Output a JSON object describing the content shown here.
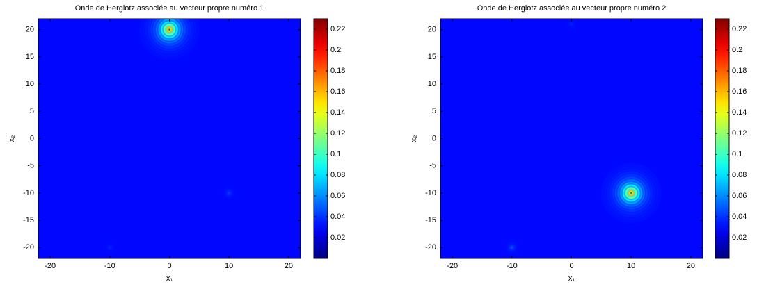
{
  "chart_data": [
    {
      "type": "heatmap",
      "title": "Onde de Herglotz associée au vecteur propre numéro 1",
      "xlabel": "x₁",
      "ylabel": "x₂",
      "xlim": [
        -22,
        22
      ],
      "ylim": [
        -22,
        22
      ],
      "xticks": [
        -20,
        -10,
        0,
        10,
        20
      ],
      "yticks": [
        -20,
        -15,
        -10,
        -5,
        0,
        5,
        10,
        15,
        20
      ],
      "clim": [
        0,
        0.23
      ],
      "cticks": [
        0.02,
        0.04,
        0.06,
        0.08,
        0.1,
        0.12,
        0.14,
        0.16,
        0.18,
        0.2,
        0.22
      ],
      "colormap": "jet",
      "background": 0.03,
      "x": [
        0,
        10,
        -10
      ],
      "y": [
        20,
        -10,
        -20
      ],
      "values": [
        0.23,
        0.05,
        0.04
      ]
    },
    {
      "type": "heatmap",
      "title": "Onde de Herglotz associée au vecteur propre numéro 2",
      "xlabel": "x₁",
      "ylabel": "x₂",
      "xlim": [
        -22,
        22
      ],
      "ylim": [
        -22,
        22
      ],
      "xticks": [
        -20,
        -10,
        0,
        10,
        20
      ],
      "yticks": [
        -20,
        -15,
        -10,
        -5,
        0,
        5,
        10,
        15,
        20
      ],
      "clim": [
        0,
        0.23
      ],
      "cticks": [
        0.02,
        0.04,
        0.06,
        0.08,
        0.1,
        0.12,
        0.14,
        0.16,
        0.18,
        0.2,
        0.22
      ],
      "colormap": "jet",
      "background": 0.03,
      "x": [
        10,
        -10,
        0
      ],
      "y": [
        -10,
        -20,
        21
      ],
      "values": [
        0.23,
        0.06,
        0.04
      ]
    }
  ]
}
